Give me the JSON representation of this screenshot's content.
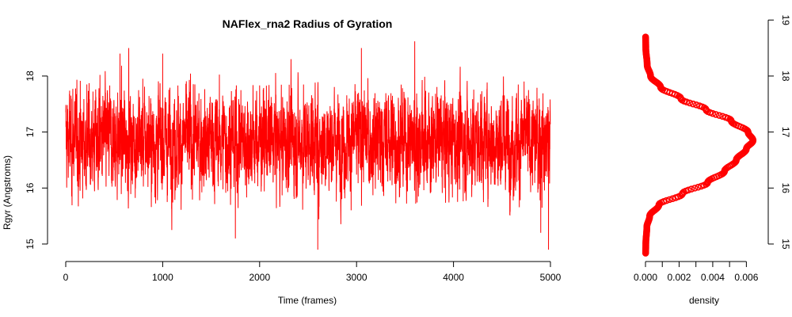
{
  "chart_data": [
    {
      "type": "line",
      "title": "NAFlex_rna2 Radius of Gyration",
      "xlabel": "Time (frames)",
      "ylabel": "Rgyr (Angstroms)",
      "xlim": [
        0,
        5000
      ],
      "ylim": [
        14.9,
        18.65
      ],
      "x_ticks": [
        0,
        1000,
        2000,
        3000,
        4000,
        5000
      ],
      "y_ticks": [
        15,
        16,
        17,
        18
      ],
      "series": [
        {
          "color": "#ff0000",
          "n_frames": 5000,
          "summary": {
            "mean": 16.85,
            "sd": 0.45,
            "min": 14.9,
            "max": 18.62
          },
          "peaks": [
            {
              "x": 560,
              "y": 18.4
            },
            {
              "x": 650,
              "y": 18.5
            },
            {
              "x": 1000,
              "y": 18.4
            },
            {
              "x": 1750,
              "y": 15.1
            },
            {
              "x": 2600,
              "y": 14.9
            },
            {
              "x": 3050,
              "y": 18.5
            },
            {
              "x": 3600,
              "y": 18.62
            },
            {
              "x": 4900,
              "y": 15.2
            },
            {
              "x": 4980,
              "y": 14.9
            }
          ]
        }
      ],
      "grid": false,
      "legend": "none"
    },
    {
      "type": "line",
      "title": "",
      "xlabel": "density",
      "ylabel": "",
      "xlim": [
        0,
        0.0065
      ],
      "ylim": [
        14.9,
        18.65
      ],
      "x_ticks": [
        "0.000",
        "0.002",
        "0.004",
        "0.006"
      ],
      "y_ticks": [
        15,
        16,
        17,
        18,
        19
      ],
      "y_axis_side": "right",
      "series": [
        {
          "color": "#ff0000",
          "points": [
            {
              "y": 14.7,
              "x": 0.0
            },
            {
              "y": 15.0,
              "x": 2e-05
            },
            {
              "y": 15.3,
              "x": 8e-05
            },
            {
              "y": 15.5,
              "x": 0.00025
            },
            {
              "y": 15.7,
              "x": 0.0008
            },
            {
              "y": 15.9,
              "x": 0.0022
            },
            {
              "y": 16.1,
              "x": 0.0037
            },
            {
              "y": 16.3,
              "x": 0.0047
            },
            {
              "y": 16.5,
              "x": 0.0054
            },
            {
              "y": 16.7,
              "x": 0.006
            },
            {
              "y": 16.85,
              "x": 0.0064
            },
            {
              "y": 17.0,
              "x": 0.0061
            },
            {
              "y": 17.2,
              "x": 0.0051
            },
            {
              "y": 17.4,
              "x": 0.0036
            },
            {
              "y": 17.6,
              "x": 0.0021
            },
            {
              "y": 17.8,
              "x": 0.0009
            },
            {
              "y": 18.0,
              "x": 0.0003
            },
            {
              "y": 18.2,
              "x": 0.0001
            },
            {
              "y": 18.5,
              "x": 2e-05
            },
            {
              "y": 18.8,
              "x": 0.0
            }
          ]
        }
      ],
      "grid": false,
      "legend": "none"
    }
  ]
}
